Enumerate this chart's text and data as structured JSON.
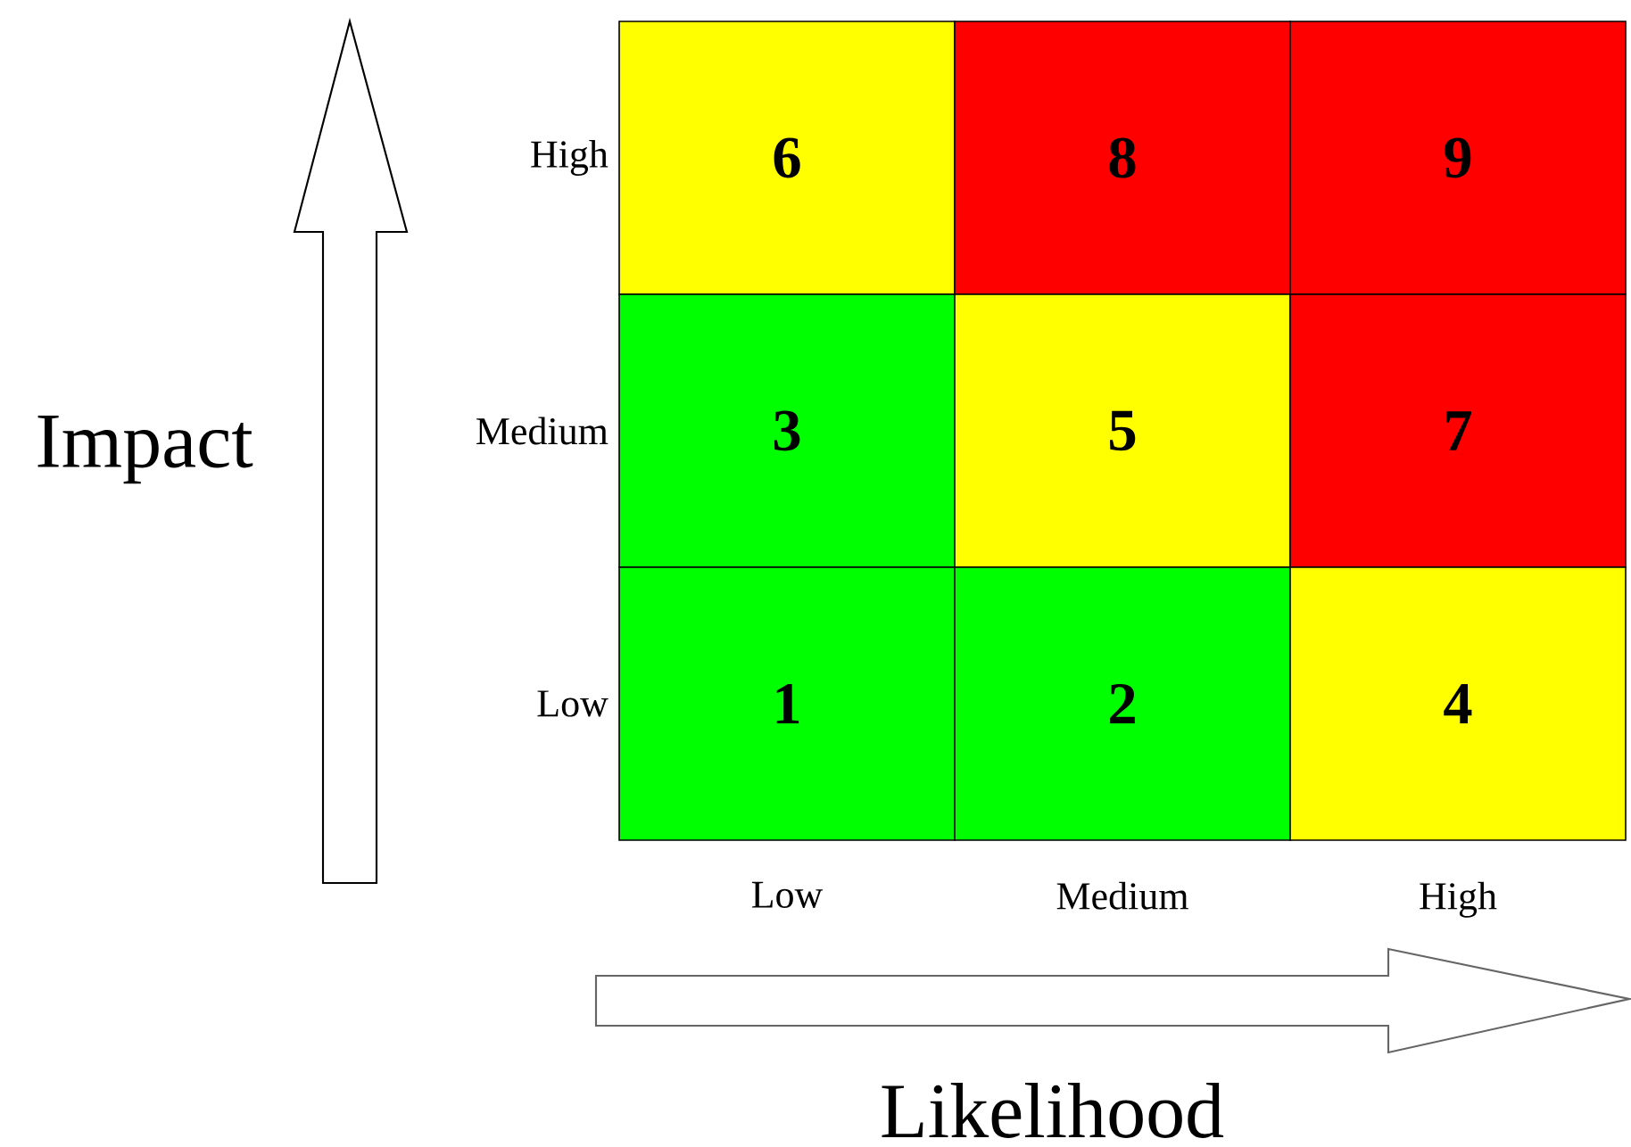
{
  "chart_data": {
    "type": "heatmap",
    "xlabel": "Likelihood",
    "ylabel": "Impact",
    "categories": [
      "Low",
      "Medium",
      "High"
    ],
    "y_categories": [
      "High",
      "Medium",
      "Low"
    ],
    "cells": [
      [
        6,
        8,
        9
      ],
      [
        3,
        5,
        7
      ],
      [
        1,
        2,
        4
      ]
    ],
    "colors": [
      "#00ff00",
      "#ffff00",
      "#ff0000"
    ],
    "data_labels": true
  }
}
